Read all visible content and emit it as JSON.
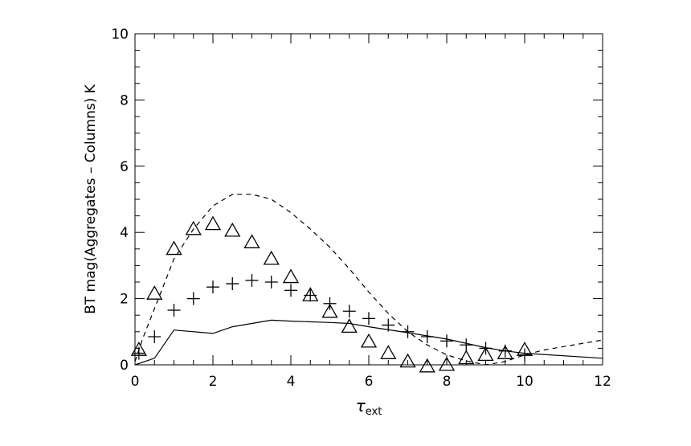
{
  "chart_data": {
    "type": "scatter",
    "title": "",
    "xlabel_symbol": "τ",
    "xlabel_subscript": "ext",
    "ylabel": "BT mag(Aggregates – Columns) K",
    "xlim": [
      0,
      12
    ],
    "ylim": [
      0,
      10
    ],
    "xticks": [
      "0",
      "2",
      "4",
      "6",
      "8",
      "10",
      "12"
    ],
    "yticks": [
      "0",
      "2",
      "4",
      "6",
      "8",
      "10"
    ],
    "grid": false,
    "series": [
      {
        "style": "solid-line",
        "x": [
          0,
          0.5,
          1,
          2,
          2.5,
          3,
          3.5,
          4,
          5,
          5.5,
          6,
          7,
          8,
          9,
          9.5,
          10,
          12
        ],
        "y": [
          0,
          0.2,
          1.05,
          0.95,
          1.15,
          1.25,
          1.35,
          1.32,
          1.28,
          1.25,
          1.15,
          0.97,
          0.78,
          0.52,
          0.42,
          0.35,
          0.2
        ]
      },
      {
        "style": "dashed-line",
        "x": [
          0,
          0.2,
          0.5,
          1,
          1.5,
          2,
          2.5,
          3,
          3.5,
          4,
          4.5,
          5,
          5.5,
          6,
          6.5,
          7,
          7.5,
          8,
          8.5,
          9,
          9.5,
          10,
          10.5,
          11,
          12
        ],
        "y": [
          0.1,
          0.8,
          1.7,
          3.2,
          4.1,
          4.8,
          5.15,
          5.15,
          5.0,
          4.6,
          4.1,
          3.55,
          2.9,
          2.2,
          1.55,
          1.0,
          0.6,
          0.3,
          0.12,
          0.0,
          0.1,
          0.3,
          0.45,
          0.55,
          0.75
        ]
      },
      {
        "style": "plus-marker",
        "x": [
          0.1,
          0.5,
          1,
          1.5,
          2,
          2.5,
          3,
          3.5,
          4,
          4.5,
          5,
          5.5,
          6,
          6.5,
          7,
          7.5,
          8,
          8.5,
          9,
          9.5,
          10
        ],
        "y": [
          0.35,
          0.85,
          1.65,
          2.0,
          2.35,
          2.45,
          2.55,
          2.5,
          2.25,
          2.1,
          1.85,
          1.62,
          1.4,
          1.2,
          1.0,
          0.85,
          0.72,
          0.6,
          0.5,
          0.42,
          0.3
        ]
      },
      {
        "style": "triangle-marker",
        "x": [
          0.1,
          0.5,
          1,
          1.5,
          2,
          2.5,
          3,
          3.5,
          4,
          4.5,
          5,
          5.5,
          6,
          6.5,
          7,
          7.5,
          8,
          8.5,
          9,
          9.5,
          10
        ],
        "y": [
          0.45,
          2.15,
          3.5,
          4.1,
          4.25,
          4.05,
          3.7,
          3.2,
          2.65,
          2.1,
          1.6,
          1.15,
          0.7,
          0.35,
          0.1,
          -0.05,
          0.0,
          0.2,
          0.3,
          0.35,
          0.45
        ]
      }
    ]
  }
}
